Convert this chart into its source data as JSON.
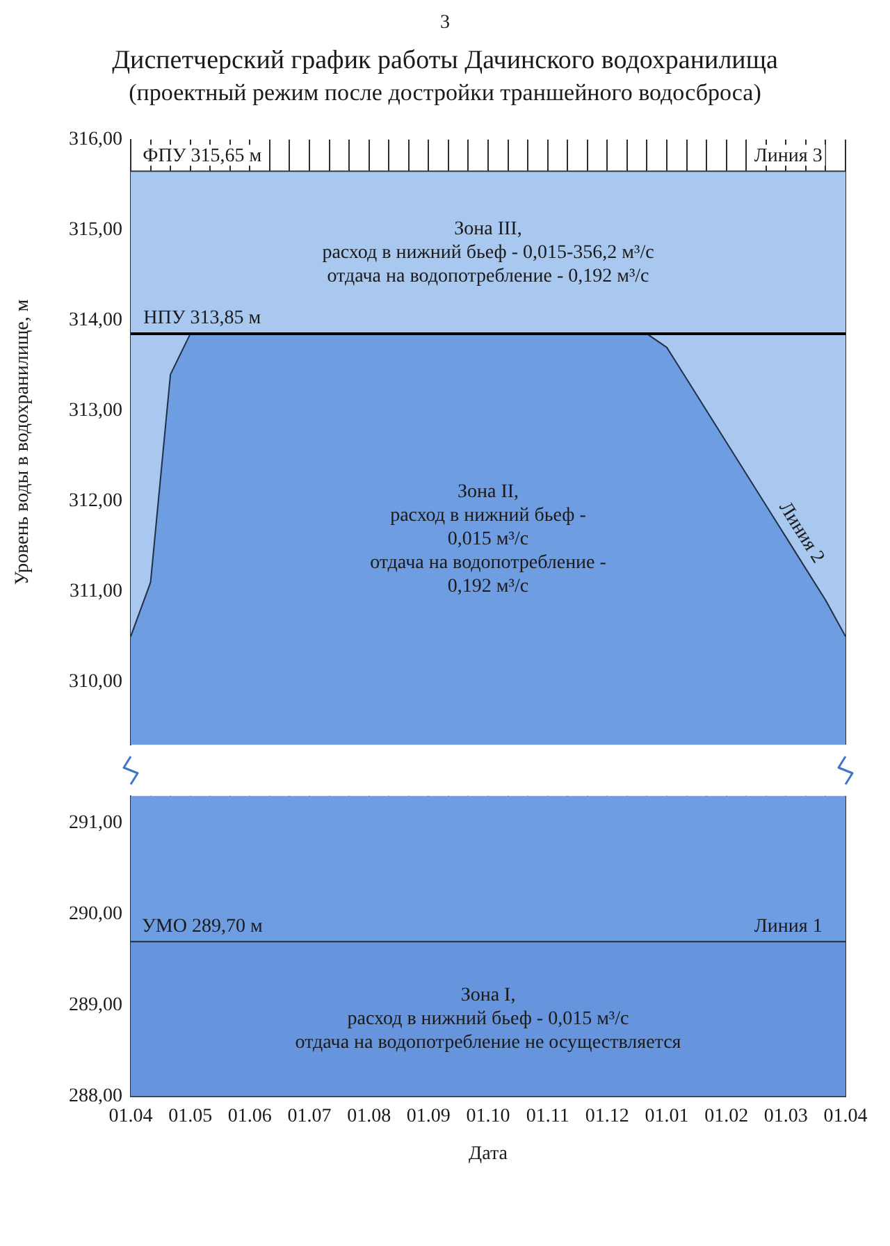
{
  "chart_data": [
    {
      "type": "area",
      "title": "Диспетчерский график работы Дачинского водохранилища",
      "subtitle": "(проектный режим после достройки траншейного водосброса)",
      "ylabel": "Уровень воды в водохранилище, м",
      "categories": [
        "01.04",
        null,
        null,
        "01.05",
        null,
        null,
        "01.06",
        null,
        null,
        "01.07",
        null,
        null,
        "01.08",
        null,
        null,
        "01.09",
        null,
        null,
        "01.10",
        null,
        null,
        "01.11",
        null,
        null,
        "01.12",
        null,
        null,
        "01.01",
        null,
        null,
        "01.02",
        null,
        null,
        "01.03",
        null,
        null,
        "01.04"
      ],
      "ylim": [
        309.3,
        316
      ],
      "yticks": [
        {
          "value": 310,
          "label": "310,00"
        },
        {
          "value": 311,
          "label": "311,00"
        },
        {
          "value": 312,
          "label": "312,00"
        },
        {
          "value": 313,
          "label": "313,00"
        },
        {
          "value": 314,
          "label": "314,00"
        },
        {
          "value": 315,
          "label": "315,00"
        },
        {
          "value": 316,
          "label": "316,00"
        }
      ],
      "grid": "x",
      "tick_labels": "y",
      "series": [
        {
          "name": "Линия 3",
          "color": "#a9c8f0",
          "values": [
            315.65,
            315.65,
            315.65,
            315.65,
            315.65,
            315.65,
            315.65,
            315.65,
            315.65,
            315.65,
            315.65,
            315.65,
            315.65,
            315.65,
            315.65,
            315.65,
            315.65,
            315.65,
            315.65,
            315.65,
            315.65,
            315.65,
            315.65,
            315.65,
            315.65,
            315.65,
            315.65,
            315.65,
            315.65,
            315.65,
            315.65,
            315.65,
            315.65,
            315.65,
            315.65,
            315.65,
            315.65
          ]
        },
        {
          "name": "Линия 2",
          "color": "#6f9de2",
          "values": [
            310.5,
            311.1,
            313.4,
            313.85,
            313.85,
            313.85,
            313.85,
            313.85,
            313.85,
            313.85,
            313.85,
            313.85,
            313.85,
            313.85,
            313.85,
            313.85,
            313.85,
            313.85,
            313.85,
            313.85,
            313.85,
            313.85,
            313.85,
            313.85,
            313.85,
            313.85,
            313.85,
            313.7,
            313.35,
            313.0,
            312.65,
            312.3,
            311.95,
            311.6,
            311.25,
            310.9,
            310.5
          ]
        }
      ],
      "ref_lines": [
        {
          "axis": "y",
          "value": 313.85,
          "label": "НПУ 313,85 м",
          "color": "#000000"
        }
      ],
      "annotations": [
        "3",
        {
          "text": "ФПУ 315,65 м",
          "y": 315.65
        },
        "Зона III,\nрасход в нижний бьеф - 0,015-356,2 м³/с\nотдача на водопотребление - 0,192 м³/с",
        "Зона II,\nрасход в нижний бьеф -\n0,015 м³/с\nотдача на водопотребление -\n0,192 м³/с"
      ]
    },
    {
      "type": "area",
      "xlabel": "Дата",
      "categories": [
        "01.04",
        null,
        null,
        "01.05",
        null,
        null,
        "01.06",
        null,
        null,
        "01.07",
        null,
        null,
        "01.08",
        null,
        null,
        "01.09",
        null,
        null,
        "01.10",
        null,
        null,
        "01.11",
        null,
        null,
        "01.12",
        null,
        null,
        "01.01",
        null,
        null,
        "01.02",
        null,
        null,
        "01.03",
        null,
        null,
        "01.04"
      ],
      "ylim": [
        288,
        291.3
      ],
      "yticks": [
        {
          "value": 288,
          "label": "288,00"
        },
        {
          "value": 289,
          "label": "289,00"
        },
        {
          "value": 290,
          "label": "290,00"
        },
        {
          "value": 291,
          "label": "291,00"
        }
      ],
      "grid": "x",
      "series": [
        {
          "name": "Линия 1",
          "color": "#6795dd",
          "values": [
            289.7,
            289.7,
            289.7,
            289.7,
            289.7,
            289.7,
            289.7,
            289.7,
            289.7,
            289.7,
            289.7,
            289.7,
            289.7,
            289.7,
            289.7,
            289.7,
            289.7,
            289.7,
            289.7,
            289.7,
            289.7,
            289.7,
            289.7,
            289.7,
            289.7,
            289.7,
            289.7,
            289.7,
            289.7,
            289.7,
            289.7,
            289.7,
            289.7,
            289.7,
            289.7,
            289.7,
            289.7
          ]
        }
      ],
      "bands": [
        {
          "axis": "y",
          "from": 289.7,
          "to": 291.3,
          "color": "#6f9de2"
        }
      ],
      "annotations": [
        {
          "text": "УМО 289,70 м",
          "y": 289.7
        },
        "Зона I,\nрасход в нижний бьеф - 0,015 м³/с\nотдача на водопотребление не осуществляется"
      ]
    }
  ]
}
